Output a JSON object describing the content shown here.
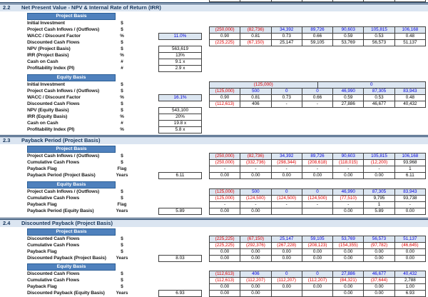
{
  "colors": {
    "section_band_bg": "#dbe5f1",
    "section_text": "#16365c",
    "basis_bar_bg": "#4f81bd",
    "input_cell_bg": "#dce6f1",
    "input_text_blue": "#0000dd",
    "negative_red": "#e00000",
    "grid_border": "#3f3f3f"
  },
  "sections": [
    {
      "number": "2.2",
      "title": "Net Present Value - NPV & Internal Rate of Return (IRR)",
      "blocks": [
        {
          "header": "Project Basis",
          "rows": [
            {
              "label": "Initial Investment",
              "unit": "$"
            },
            {
              "label": "Project Cash Inflows / (Outflows)",
              "unit": "$",
              "type": "input",
              "cells": [
                "(250,000)",
                "(82,736)",
                "34,392",
                "89,726",
                "90,603",
                "105,815",
                "106,168"
              ]
            },
            {
              "label": "WACC / Discount Factor",
              "unit": "%",
              "summary": "11.0%",
              "summary_type": "input",
              "type": "calc",
              "cells": [
                "0.90",
                "0.81",
                "0.73",
                "0.66",
                "0.59",
                "0.53",
                "0.48"
              ]
            },
            {
              "label": "Discounted Cash Flows",
              "unit": "$",
              "type": "calc",
              "cells": [
                "(225,225)",
                "(67,150)",
                "25,147",
                "59,105",
                "53,769",
                "56,573",
                "51,137"
              ]
            },
            {
              "label": "NPV (Project Basis)",
              "unit": "$",
              "summary": "563,619"
            },
            {
              "label": "IRR (Project Basis)",
              "unit": "%",
              "summary": "13%"
            },
            {
              "label": "Cash on Cash",
              "unit": "#",
              "summary": "9.1 x"
            },
            {
              "label": "Profitability Index (PI)",
              "unit": "#",
              "summary": "2.9 x"
            }
          ]
        },
        {
          "header": "Equity Basis",
          "rows": [
            {
              "label": "Initial Investment",
              "unit": "$",
              "type": "input",
              "cells": [
                "(125,000)",
                "0"
              ]
            },
            {
              "label": "Project Cash Inflows / (Outflows)",
              "unit": "$",
              "type": "input",
              "cells": [
                "(125,000)",
                "500",
                "0",
                "0",
                "46,990",
                "87,305",
                "83,943"
              ]
            },
            {
              "label": "WACC / Discount Factor",
              "unit": "%",
              "summary": "16.1%",
              "summary_type": "input",
              "type": "calc",
              "cells": [
                "0.90",
                "0.81",
                "0.73",
                "0.66",
                "0.59",
                "0.53",
                "0.48"
              ]
            },
            {
              "label": "Discounted Cash Flows",
              "unit": "$",
              "type": "calc",
              "cells": [
                "(112,613)",
                "406",
                "-",
                "-",
                "27,886",
                "46,677",
                "40,432"
              ]
            },
            {
              "label": "NPV (Equity Basis)",
              "unit": "$",
              "summary": "543,100"
            },
            {
              "label": "IRR (Equity Basis)",
              "unit": "%",
              "summary": "20%"
            },
            {
              "label": "Cash on Cash",
              "unit": "#",
              "summary": "19.8 x"
            },
            {
              "label": "Profitability Index (PI)",
              "unit": "%",
              "summary": "5.8 x"
            }
          ]
        }
      ]
    },
    {
      "number": "2.3",
      "title": "Payback Period (Project Basis)",
      "blocks": [
        {
          "header": "Project Basis",
          "rows": [
            {
              "label": "Project Cash Inflows / (Outflows)",
              "unit": "$",
              "type": "input",
              "cells": [
                "(250,000)",
                "(82,736)",
                "34,392",
                "89,726",
                "90,603",
                "105,815",
                "106,168"
              ]
            },
            {
              "label": "Cumulative Cash Flows",
              "unit": "$",
              "type": "calc",
              "cells": [
                "(250,000)",
                "(332,736)",
                "(298,344)",
                "(208,618)",
                "(118,015)",
                "(12,200)",
                "93,968"
              ]
            },
            {
              "label": "Payback Flag",
              "unit": "Flag",
              "type": "calc",
              "cells": [
                "-",
                "-",
                "-",
                "-",
                "-",
                "-",
                "1"
              ]
            },
            {
              "label": "Payback Period (Project Basis)",
              "unit": "Years",
              "summary": "6.11",
              "type": "calc",
              "cells": [
                "0.00",
                "0.00",
                "0.00",
                "0.00",
                "0.00",
                "0.00",
                "6.11"
              ]
            }
          ]
        },
        {
          "header": "Equity Basis",
          "rows": [
            {
              "label": "Project Cash Inflows / (Outflows)",
              "unit": "$",
              "type": "input",
              "cells": [
                "(125,000)",
                "500",
                "0",
                "0",
                "46,990",
                "87,305",
                "83,943"
              ]
            },
            {
              "label": "Cumulative Cash Flows",
              "unit": "$",
              "type": "calc",
              "cells": [
                "(125,000)",
                "(124,500)",
                "(124,500)",
                "(124,500)",
                "(77,510)",
                "9,795",
                "93,738"
              ]
            },
            {
              "label": "Payback Flag",
              "unit": "Flag",
              "type": "calc",
              "cells": [
                "-",
                "-",
                "-",
                "-",
                "-",
                "1",
                "-"
              ]
            },
            {
              "label": "Payback Period (Equity Basis)",
              "unit": "Years",
              "summary": "5.89",
              "type": "calc",
              "cells": [
                "0.00",
                "0.00",
                "",
                "",
                "0.00",
                "5.89",
                "0.00"
              ]
            }
          ]
        }
      ]
    },
    {
      "number": "2.4",
      "title": "Discounted Payback (Project Basis)",
      "blocks": [
        {
          "header": "Project Basis",
          "rows": [
            {
              "label": "Discounted Cash Flows",
              "unit": "$",
              "type": "input",
              "cells": [
                "(225,225)",
                "(67,150)",
                "25,147",
                "59,105",
                "53,769",
                "56,573",
                "51,137"
              ]
            },
            {
              "label": "Cumulative Cash Flows",
              "unit": "$",
              "type": "calc",
              "cells": [
                "(225,225)",
                "(292,376)",
                "(267,228)",
                "(208,123)",
                "(154,355)",
                "(97,782)",
                "(46,645)"
              ]
            },
            {
              "label": "Payback Flag",
              "unit": "$",
              "type": "calc",
              "cells": [
                "0.00",
                "0.00",
                "0.00",
                "0.00",
                "0.00",
                "0.00",
                "0.00"
              ]
            },
            {
              "label": "Discounted Payback (Project Basis)",
              "unit": "Years",
              "summary": "8.03",
              "type": "calc",
              "cells": [
                "0.00",
                "0.00",
                "0.00",
                "0.00",
                "0.00",
                "0.00",
                "0.00"
              ]
            }
          ]
        },
        {
          "header": "Equity Basis",
          "rows": [
            {
              "label": "Discounted Cash Flows",
              "unit": "$",
              "type": "input",
              "cells": [
                "(112,613)",
                "406",
                "0",
                "0",
                "27,886",
                "46,677",
                "40,432"
              ]
            },
            {
              "label": "Cumulative Cash Flows",
              "unit": "$",
              "type": "calc",
              "cells": [
                "(112,613)",
                "(112,207)",
                "(112,207)",
                "(112,207)",
                "(84,321)",
                "(37,644)",
                "2,788"
              ]
            },
            {
              "label": "Payback Flag",
              "unit": "$",
              "type": "calc",
              "cells": [
                "0.00",
                "0.00",
                "0.00",
                "0.00",
                "0.00",
                "0.00",
                "1.00"
              ]
            },
            {
              "label": "Discounted Payback (Equity Basis)",
              "unit": "Years",
              "summary": "6.93",
              "type": "calc",
              "cells": [
                "0.00",
                "0.00",
                "",
                "",
                "0.00",
                "0.00",
                "6.93"
              ]
            }
          ]
        }
      ]
    }
  ]
}
